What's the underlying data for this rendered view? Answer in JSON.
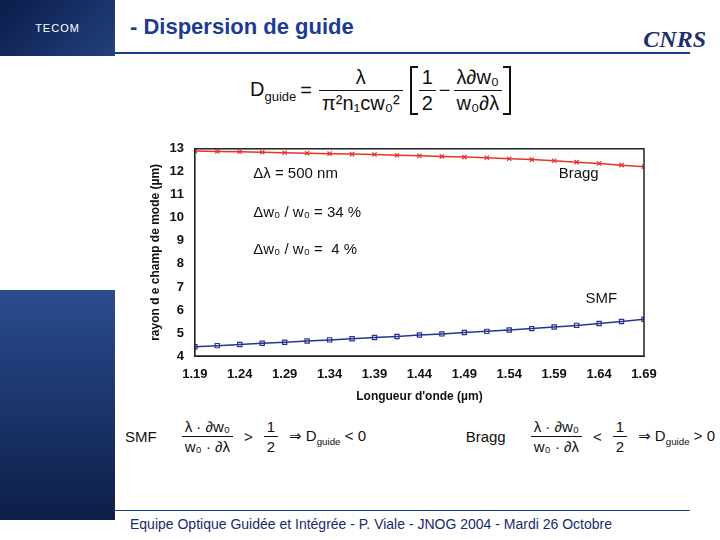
{
  "header": {
    "title": "- Dispersion de guide",
    "logos": [
      "TECOM",
      "CNRS"
    ]
  },
  "formula": {
    "lhs": "D",
    "lhs_sub": "guide",
    "equals": "=",
    "factor_num": "λ",
    "factor_den": "π²n₁cw₀²",
    "term1_num": "1",
    "term1_den": "2",
    "operator": "−",
    "term2_num": "λ∂w₀",
    "term2_den": "w₀∂λ"
  },
  "chart_data": {
    "type": "line",
    "x_label": "Longueur d'onde (µm)",
    "y_label": "rayon d e champ de mode (µm)",
    "x": [
      1.19,
      1.215,
      1.24,
      1.265,
      1.29,
      1.315,
      1.34,
      1.365,
      1.39,
      1.415,
      1.44,
      1.465,
      1.49,
      1.515,
      1.54,
      1.565,
      1.59,
      1.615,
      1.64,
      1.665,
      1.69
    ],
    "series": [
      {
        "name": "Bragg",
        "color": "#e3342b",
        "marker": "x",
        "line_style": "solid",
        "values": [
          12.9,
          12.88,
          12.87,
          12.85,
          12.83,
          12.81,
          12.79,
          12.77,
          12.75,
          12.72,
          12.7,
          12.67,
          12.64,
          12.61,
          12.57,
          12.53,
          12.48,
          12.42,
          12.36,
          12.29,
          12.22
        ]
      },
      {
        "name": "SMF",
        "color": "#26368f",
        "marker": "square",
        "line_style": "solid",
        "values": [
          4.4,
          4.45,
          4.5,
          4.55,
          4.6,
          4.65,
          4.7,
          4.75,
          4.8,
          4.85,
          4.91,
          4.96,
          5.02,
          5.07,
          5.13,
          5.19,
          5.26,
          5.33,
          5.41,
          5.5,
          5.6
        ]
      }
    ],
    "xlim": [
      1.19,
      1.69
    ],
    "xticks": [
      1.19,
      1.24,
      1.29,
      1.34,
      1.39,
      1.44,
      1.49,
      1.54,
      1.59,
      1.64,
      1.69
    ],
    "ylim": [
      4,
      13
    ],
    "yticks": [
      4,
      5,
      6,
      7,
      8,
      9,
      10,
      11,
      12,
      13
    ],
    "grid": false,
    "annotations": [
      {
        "text": "Δλ = 500 nm",
        "x": 1.255,
        "y": 11.9
      },
      {
        "text": "Bragg",
        "x": 1.595,
        "y": 11.9
      },
      {
        "text": "Δw₀ / w₀ = 34 %",
        "x": 1.255,
        "y": 10.2
      },
      {
        "text": "Δw₀ / w₀ =  4 %",
        "x": 1.255,
        "y": 8.6
      },
      {
        "text": "SMF",
        "x": 1.625,
        "y": 6.5
      }
    ]
  },
  "conditions": [
    {
      "label": "SMF",
      "lhs_num": "λ · ∂w₀",
      "lhs_den": "w₀ · ∂λ",
      "relation": ">",
      "rhs_num": "1",
      "rhs_den": "2",
      "implies": "⇒ D",
      "implies_sub": "guide",
      "result": "< 0"
    },
    {
      "label": "Bragg",
      "lhs_num": "λ · ∂w₀",
      "lhs_den": "w₀ · ∂λ",
      "relation": "<",
      "rhs_num": "1",
      "rhs_den": "2",
      "implies": "⇒ D",
      "implies_sub": "guide",
      "result": "> 0"
    }
  ],
  "footer": "Equipe Optique Guidée et Intégrée - P. Viale - JNOG 2004 - Mardi 26 Octobre"
}
